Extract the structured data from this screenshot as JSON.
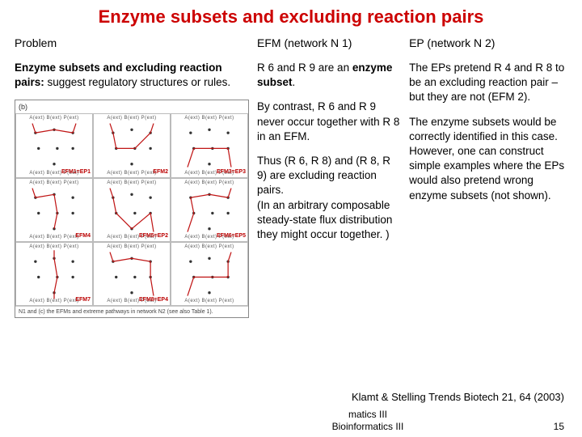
{
  "title": {
    "text": "Enzyme subsets and excluding reaction pairs",
    "color": "#cc0000",
    "fontsize": 22
  },
  "headers": {
    "col_a": "Problem",
    "col_b": "EFM (network N 1)",
    "col_c": "EP (network N 2)"
  },
  "col_a": {
    "p1_bold": "Enzyme subsets and excluding reaction pairs:",
    "p1_rest": " suggest regulatory structures or rules.",
    "figure": {
      "panel_label": "(b)",
      "top_labels": "A(ext)  B(ext)  P(ext)",
      "bot_labels": "A(ext)  B(ext)  P(ext)",
      "tags": [
        "EFM1=EP1",
        "EFM2",
        "EFM3=EP3",
        "EFM4",
        "EFM5=EP2",
        "EFM6=EP5",
        "EFM7",
        "EFM8=EP4",
        ""
      ],
      "caption": "N1 and (c) the EFMs and extreme pathways in network N2 (see also Table 1).",
      "path_color": "#c01515",
      "node_color": "#333333"
    }
  },
  "col_b": {
    "p1a": "R 6 and R 9 are an ",
    "p1b": "enzyme subset",
    "p1c": ".",
    "p2": "By contrast, R 6 and R 9 never occur together with R 8 in an EFM.",
    "p3": "Thus (R 6, R 8) and (R 8, R 9) are excluding reaction pairs.\n(In an arbitrary composable steady-state flux distribution they might occur together. )"
  },
  "col_c": {
    "p1": "The EPs pretend R 4 and R 8 to be an excluding reaction pair – but they are not (EFM 2).",
    "p2": "The enzyme subsets would be correctly identified in this case. However, one can construct simple examples where the EPs would also pretend wrong enzyme subsets (not shown)."
  },
  "citation": "Klamt & Stelling Trends Biotech 21, 64 (2003)",
  "footer": {
    "line1": "matics III",
    "line2": "Bioinformatics III",
    "page": "15"
  }
}
